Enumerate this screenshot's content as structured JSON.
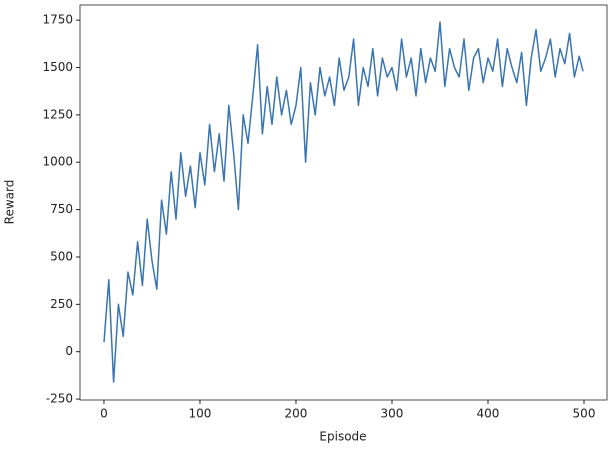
{
  "chart_data": {
    "type": "line",
    "x_label": "Episode",
    "y_label": "Reward",
    "x": [
      0,
      5,
      10,
      15,
      20,
      25,
      30,
      35,
      40,
      45,
      50,
      55,
      60,
      65,
      70,
      75,
      80,
      85,
      90,
      95,
      100,
      105,
      110,
      115,
      120,
      125,
      130,
      135,
      140,
      145,
      150,
      155,
      160,
      165,
      170,
      175,
      180,
      185,
      190,
      195,
      200,
      205,
      210,
      215,
      220,
      225,
      230,
      235,
      240,
      245,
      250,
      255,
      260,
      265,
      270,
      275,
      280,
      285,
      290,
      295,
      300,
      305,
      310,
      315,
      320,
      325,
      330,
      335,
      340,
      345,
      350,
      355,
      360,
      365,
      370,
      375,
      380,
      385,
      390,
      395,
      400,
      405,
      410,
      415,
      420,
      425,
      430,
      435,
      440,
      445,
      450,
      455,
      460,
      465,
      470,
      475,
      480,
      485,
      490,
      495,
      499
    ],
    "series": [
      {
        "name": "Reward",
        "color": "#3a75b0",
        "values": [
          50,
          380,
          -160,
          250,
          80,
          420,
          300,
          580,
          350,
          700,
          480,
          330,
          800,
          620,
          950,
          700,
          1050,
          820,
          980,
          760,
          1050,
          880,
          1200,
          950,
          1150,
          900,
          1300,
          1050,
          750,
          1250,
          1100,
          1350,
          1620,
          1150,
          1400,
          1200,
          1450,
          1250,
          1380,
          1200,
          1300,
          1500,
          1000,
          1420,
          1250,
          1500,
          1350,
          1450,
          1300,
          1550,
          1380,
          1450,
          1650,
          1300,
          1500,
          1400,
          1600,
          1350,
          1550,
          1450,
          1500,
          1380,
          1650,
          1450,
          1550,
          1350,
          1600,
          1420,
          1550,
          1480,
          1740,
          1400,
          1600,
          1500,
          1450,
          1650,
          1380,
          1550,
          1600,
          1420,
          1550,
          1480,
          1650,
          1400,
          1600,
          1500,
          1420,
          1580,
          1300,
          1550,
          1700,
          1480,
          1550,
          1650,
          1450,
          1600,
          1520,
          1680,
          1450,
          1560,
          1480
        ]
      }
    ],
    "xlim": [
      -24.95,
      523.95
    ],
    "ylim": [
      -255,
      1830
    ],
    "xticks": [
      0,
      100,
      200,
      300,
      400,
      500
    ],
    "yticks": [
      -250,
      0,
      250,
      500,
      750,
      1000,
      1250,
      1500,
      1750
    ]
  }
}
